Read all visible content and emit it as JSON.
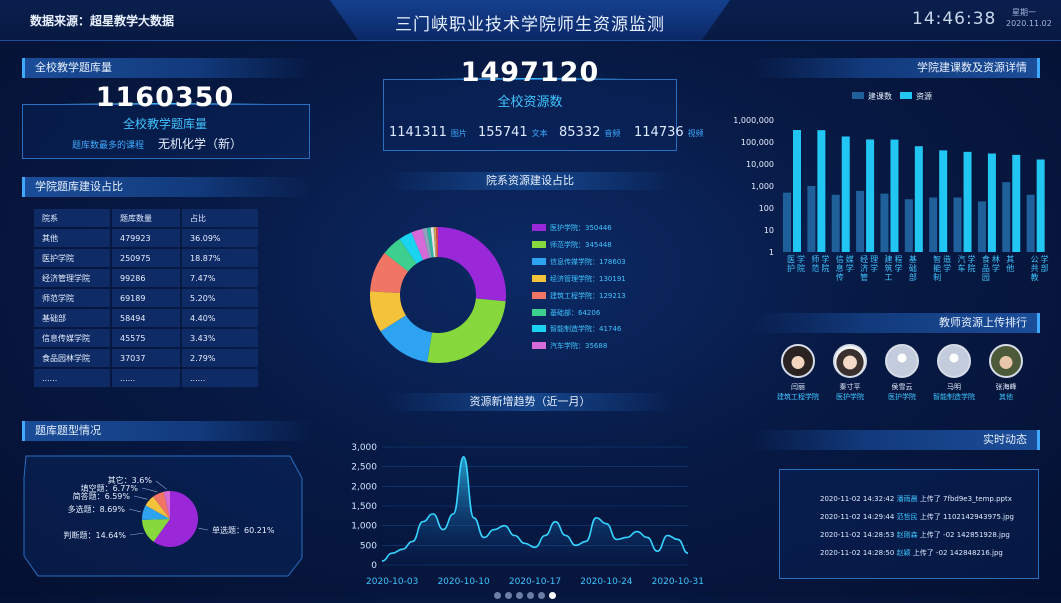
{
  "header": {
    "source": "数据来源：超星教学大数据",
    "title": "三门峡职业技术学院师生资源监测",
    "time": "14:46:38",
    "weekday": "星期一",
    "date": "2020.11.02"
  },
  "question_bank": {
    "section_title": "全校教学题库量",
    "total": "1160350",
    "label": "全校教学题库量",
    "top_course_label": "题库数最多的课程",
    "top_course": "无机化学（新）"
  },
  "resources": {
    "total": "1497120",
    "label": "全校资源数",
    "stats": [
      {
        "value": "1141311",
        "unit": "图片"
      },
      {
        "value": "155741",
        "unit": "文本"
      },
      {
        "value": "85332",
        "unit": "音频"
      },
      {
        "value": "114736",
        "unit": "视频"
      }
    ]
  },
  "dept_table": {
    "section_title": "学院题库建设占比",
    "headers": [
      "院系",
      "题库数量",
      "占比"
    ],
    "rows": [
      [
        "其他",
        "479923",
        "36.09%"
      ],
      [
        "医护学院",
        "250975",
        "18.87%"
      ],
      [
        "经济管理学院",
        "99286",
        "7.47%"
      ],
      [
        "师范学院",
        "69189",
        "5.20%"
      ],
      [
        "基础部",
        "58494",
        "4.40%"
      ],
      [
        "信息传媒学院",
        "45575",
        "3.43%"
      ],
      [
        "食品园林学院",
        "37037",
        "2.79%"
      ],
      [
        "......",
        "......",
        "......"
      ]
    ]
  },
  "donut": {
    "title": "院系资源建设占比",
    "legend": [
      {
        "label": "医护学院：350446",
        "value": 350446,
        "color": "#9b28d8"
      },
      {
        "label": "师范学院：345448",
        "value": 345448,
        "color": "#86d83c"
      },
      {
        "label": "信息传媒学院：178603",
        "value": 178603,
        "color": "#2ea3f2"
      },
      {
        "label": "经济管理学院：130191",
        "value": 130191,
        "color": "#f5c33b"
      },
      {
        "label": "建筑工程学院：129213",
        "value": 129213,
        "color": "#f07564"
      },
      {
        "label": "基础部：64206",
        "value": 64206,
        "color": "#3ccf8e"
      },
      {
        "label": "智能制造学院：41746",
        "value": 41746,
        "color": "#19d3f0"
      },
      {
        "label": "汽车学院：35688",
        "value": 35688,
        "color": "#d56ad8"
      }
    ],
    "extra_slices": [
      {
        "value": 14000,
        "color": "#8fa3bd"
      },
      {
        "value": 12000,
        "color": "#2fb7a3"
      },
      {
        "value": 9000,
        "color": "#e8e8e8"
      },
      {
        "value": 8000,
        "color": "#c2a45a"
      },
      {
        "value": 6000,
        "color": "#e04444"
      }
    ]
  },
  "question_types": {
    "section_title": "题库题型情况",
    "slices": [
      {
        "label": "单选题：60.21%",
        "value": 60.21,
        "color": "#9b28d8"
      },
      {
        "label": "判断题：14.64%",
        "value": 14.64,
        "color": "#86d83c"
      },
      {
        "label": "多选题：8.69%",
        "value": 8.69,
        "color": "#2ea3f2"
      },
      {
        "label": "简答题：6.59%",
        "value": 6.59,
        "color": "#f5c33b"
      },
      {
        "label": "填空题：6.77%",
        "value": 6.77,
        "color": "#f07564"
      },
      {
        "label": "其它：3.6%",
        "value": 3.6,
        "color": "#d56ad8"
      }
    ]
  },
  "trend": {
    "title": "资源新增趋势（近一月）",
    "y_ticks": [
      "3,000",
      "2,500",
      "2,000",
      "1,500",
      "1,000",
      "500",
      "0"
    ],
    "x_ticks": [
      "2020-10-03",
      "2020-10-10",
      "2020-10-17",
      "2020-10-24",
      "2020-10-31"
    ]
  },
  "chart_data": {
    "type": "area",
    "x": [
      "2020-10-02",
      "2020-10-03",
      "2020-10-04",
      "2020-10-05",
      "2020-10-06",
      "2020-10-07",
      "2020-10-08",
      "2020-10-09",
      "2020-10-10",
      "2020-10-11",
      "2020-10-12",
      "2020-10-13",
      "2020-10-14",
      "2020-10-15",
      "2020-10-16",
      "2020-10-17",
      "2020-10-18",
      "2020-10-19",
      "2020-10-20",
      "2020-10-21",
      "2020-10-22",
      "2020-10-23",
      "2020-10-24",
      "2020-10-25",
      "2020-10-26",
      "2020-10-27",
      "2020-10-28",
      "2020-10-29",
      "2020-10-30",
      "2020-10-31",
      "2020-11-01"
    ],
    "values": [
      100,
      300,
      400,
      600,
      1100,
      1300,
      900,
      1300,
      2750,
      1200,
      700,
      900,
      1000,
      750,
      550,
      450,
      750,
      1100,
      750,
      500,
      600,
      1200,
      1050,
      650,
      700,
      850,
      700,
      350,
      750,
      650,
      300
    ],
    "ylim": [
      0,
      3000
    ]
  },
  "course_chart": {
    "section_title": "学院建课数及资源详情",
    "legend": [
      {
        "label": "建课数",
        "color": "#1f5f9a"
      },
      {
        "label": "资源",
        "color": "#21c6f3"
      }
    ],
    "y_ticks": [
      "1,000,000",
      "100,000",
      "10,000",
      "1,000",
      "100",
      "10",
      "1"
    ],
    "categories": [
      "医护学院",
      "师范学院",
      "信息传媒学",
      "经济管理学",
      "建筑工程学",
      "基础部",
      "智能制造学",
      "汽车学院",
      "食品园林学",
      "其他",
      "公共教学部"
    ],
    "courses": [
      500,
      1000,
      400,
      600,
      450,
      250,
      300,
      300,
      200,
      1500,
      400
    ],
    "resources": [
      350446,
      345448,
      178603,
      130191,
      129213,
      64206,
      41746,
      35688,
      30000,
      26000,
      16000
    ]
  },
  "upload_rank": {
    "section_title": "教师资源上传排行",
    "people": [
      {
        "name": "闫丽",
        "dept": "建筑工程学院"
      },
      {
        "name": "秦寸平",
        "dept": "医护学院"
      },
      {
        "name": "侯雪云",
        "dept": "医护学院"
      },
      {
        "name": "马明",
        "dept": "智能制造学院"
      },
      {
        "name": "张海峰",
        "dept": "其他"
      }
    ]
  },
  "realtime": {
    "section_title": "实时动态",
    "items": [
      {
        "time": "2020-11-02 14:32:42",
        "name": "潘雨晨",
        "action": "上传了",
        "file": "7fbd9e3_temp.pptx"
      },
      {
        "time": "2020-11-02 14:29:44",
        "name": "范哲民",
        "action": "上传了",
        "file": "1102142943975.jpg"
      },
      {
        "time": "2020-11-02 14:28:53",
        "name": "赵刚森",
        "action": "上传了",
        "file": "-02 142851928.jpg"
      },
      {
        "time": "2020-11-02 14:28:50",
        "name": "赵颖",
        "action": "上传了",
        "file": "-02 142848216.jpg"
      }
    ]
  },
  "pager": {
    "count": 6,
    "active": 5
  }
}
